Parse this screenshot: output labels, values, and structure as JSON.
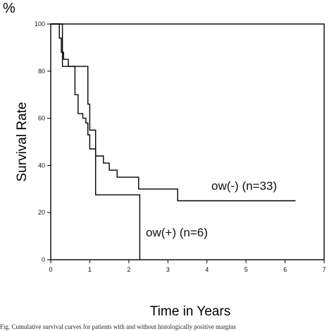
{
  "chart_data": {
    "type": "line",
    "step": true,
    "unit_label": "%",
    "xlabel": "Time in Years",
    "ylabel": "Survival Rate",
    "xlim": [
      0,
      7
    ],
    "ylim": [
      0,
      100
    ],
    "x_ticks": [
      "0",
      "1",
      "2",
      "3",
      "4",
      "5",
      "6",
      "7"
    ],
    "y_ticks": [
      "0",
      "20",
      "40",
      "60",
      "80",
      "100"
    ],
    "grid": false,
    "series": [
      {
        "name": "ow(-) (n=33)",
        "points": [
          [
            0,
            100
          ],
          [
            0.22,
            100
          ],
          [
            0.22,
            94
          ],
          [
            0.27,
            94
          ],
          [
            0.27,
            88
          ],
          [
            0.33,
            88
          ],
          [
            0.33,
            85
          ],
          [
            0.45,
            85
          ],
          [
            0.45,
            82
          ],
          [
            0.62,
            82
          ],
          [
            0.62,
            70
          ],
          [
            0.7,
            70
          ],
          [
            0.7,
            62
          ],
          [
            0.82,
            62
          ],
          [
            0.82,
            60
          ],
          [
            0.9,
            60
          ],
          [
            0.9,
            58
          ],
          [
            0.95,
            58
          ],
          [
            0.95,
            53
          ],
          [
            1.0,
            53
          ],
          [
            1.0,
            47
          ],
          [
            1.15,
            47
          ],
          [
            1.15,
            44
          ],
          [
            1.35,
            44
          ],
          [
            1.35,
            41
          ],
          [
            1.5,
            41
          ],
          [
            1.5,
            38
          ],
          [
            1.7,
            38
          ],
          [
            1.7,
            35
          ],
          [
            2.25,
            35
          ],
          [
            2.25,
            30
          ],
          [
            3.25,
            30
          ],
          [
            3.25,
            25
          ],
          [
            6.27,
            25
          ]
        ]
      },
      {
        "name": "ow(+) (n=6)",
        "points": [
          [
            0,
            100
          ],
          [
            0.3,
            100
          ],
          [
            0.3,
            82
          ],
          [
            0.95,
            82
          ],
          [
            0.95,
            66
          ],
          [
            1.0,
            66
          ],
          [
            1.0,
            55
          ],
          [
            1.15,
            55
          ],
          [
            1.15,
            27.5
          ],
          [
            2.28,
            27.5
          ],
          [
            2.28,
            0
          ]
        ]
      }
    ]
  },
  "caption": "Fig. Cumulative survival curves for patients with and without histologically positive margins"
}
